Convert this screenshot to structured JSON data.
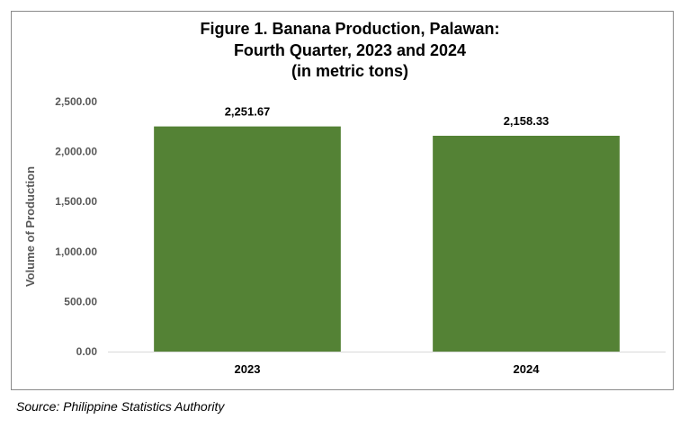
{
  "chart_data": {
    "type": "bar",
    "title_lines": [
      "Figure 1. Banana Production, Palawan:",
      "Fourth Quarter, 2023 and 2024",
      "(in metric tons)"
    ],
    "categories": [
      "2023",
      "2024"
    ],
    "values": [
      2251.67,
      2158.33
    ],
    "data_labels": [
      "2,251.67",
      "2,158.33"
    ],
    "ylabel": "Volume of Production",
    "xlabel": "",
    "ylim": [
      0,
      2500
    ],
    "yticks": [
      0,
      500,
      1000,
      1500,
      2000,
      2500
    ],
    "ytick_labels": [
      "0.00",
      "500.00",
      "1,000.00",
      "1,500.00",
      "2,000.00",
      "2,500.00"
    ],
    "grid": false,
    "legend": "none",
    "bar_color": "#548235"
  },
  "source": "Source: Philippine Statistics Authority"
}
